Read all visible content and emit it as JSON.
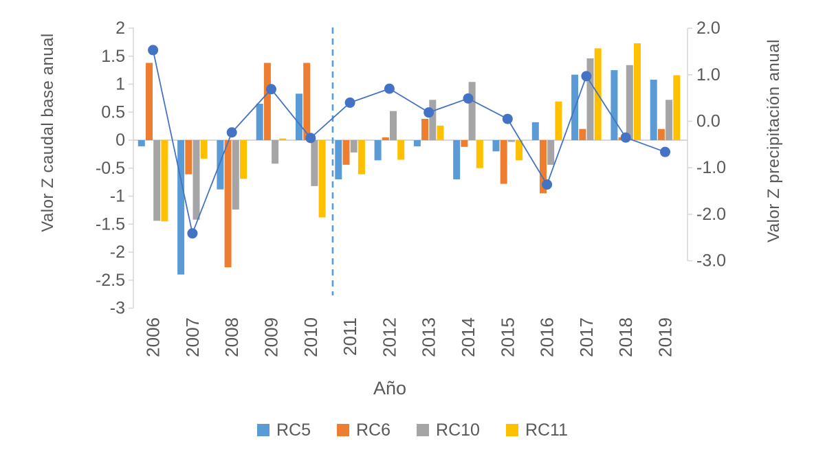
{
  "chart_data": {
    "type": "combo-bar-line",
    "xlabel": "Año",
    "ylabel_left": "Valor Z caudal base anual",
    "ylabel_right": "Valor Z precipitación anual",
    "categories": [
      "2006",
      "2007",
      "2008",
      "2009",
      "2010",
      "2011",
      "2012",
      "2013",
      "2014",
      "2015",
      "2016",
      "2017",
      "2018",
      "2019"
    ],
    "bar_series": [
      {
        "name": "RC5",
        "color": "#5B9BD5",
        "axis": "left",
        "values": [
          -0.11,
          -2.4,
          -0.88,
          0.65,
          0.83,
          -0.7,
          -0.36,
          -0.11,
          -0.7,
          -0.2,
          0.32,
          1.17,
          1.25,
          1.08
        ]
      },
      {
        "name": "RC6",
        "color": "#ED7D31",
        "axis": "left",
        "values": [
          1.38,
          -0.61,
          -2.27,
          1.38,
          1.38,
          -0.44,
          0.05,
          0.38,
          -0.12,
          -0.78,
          -0.95,
          0.2,
          0.05,
          0.2
        ]
      },
      {
        "name": "RC10",
        "color": "#A5A5A5",
        "axis": "left",
        "values": [
          -1.44,
          -1.42,
          -1.24,
          -0.42,
          -0.82,
          -0.22,
          0.52,
          0.72,
          1.04,
          -0.03,
          -0.44,
          1.46,
          1.34,
          0.72
        ]
      },
      {
        "name": "RC11",
        "color": "#FFC000",
        "axis": "left",
        "values": [
          -1.45,
          -0.33,
          -0.69,
          0.03,
          -1.38,
          -0.61,
          -0.35,
          0.26,
          -0.5,
          -0.36,
          0.69,
          1.64,
          1.73,
          1.16
        ]
      }
    ],
    "line_series": {
      "name": "Valor Z precipitación anual",
      "color": "#4472C4",
      "axis": "right",
      "marker": "circle",
      "values": [
        1.53,
        -2.41,
        -0.24,
        0.69,
        -0.36,
        0.4,
        0.7,
        0.19,
        0.49,
        0.05,
        -1.36,
        0.97,
        -0.35,
        -0.66
      ]
    },
    "left_axis": {
      "range": [
        -3,
        2
      ],
      "ticks": [
        {
          "v": 2,
          "label": "2"
        },
        {
          "v": 1.5,
          "label": "1.5"
        },
        {
          "v": 1,
          "label": "1"
        },
        {
          "v": 0.5,
          "label": "0.5"
        },
        {
          "v": 0,
          "label": "0"
        },
        {
          "v": -0.5,
          "label": "-0.5"
        },
        {
          "v": -1,
          "label": "-1"
        },
        {
          "v": -1.5,
          "label": "-1.5"
        },
        {
          "v": -2,
          "label": "-2"
        },
        {
          "v": -2.5,
          "label": "-2.5"
        },
        {
          "v": -3,
          "label": "-3"
        }
      ]
    },
    "right_axis": {
      "range": [
        -3,
        2
      ],
      "ticks": [
        {
          "v": 2,
          "label": "2.0"
        },
        {
          "v": 1,
          "label": "1.0"
        },
        {
          "v": 0,
          "label": "0.0"
        },
        {
          "v": -1,
          "label": "-1.0"
        },
        {
          "v": -2,
          "label": "-2.0"
        },
        {
          "v": -3,
          "label": "-3.0"
        }
      ]
    },
    "annotations": {
      "dashed_vline_between": [
        "2010",
        "2011"
      ],
      "dashed_vline_color": "#5B9BD5"
    },
    "grid": false,
    "legend_position": "bottom",
    "colors": {
      "axis_line": "#D9D9D9",
      "zero_line": "#C8C8C8",
      "text": "#595959"
    }
  }
}
